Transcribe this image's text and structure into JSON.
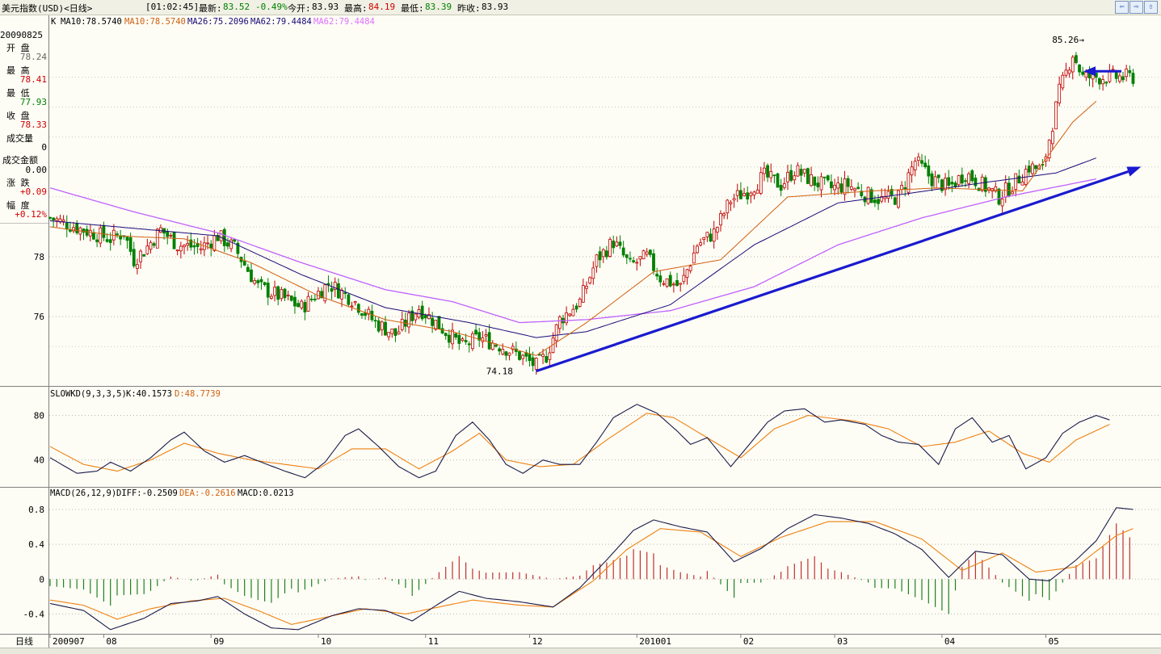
{
  "header": {
    "title": "美元指数(USD)<日线>",
    "time": "[01:02:45]",
    "last_label": "最新:",
    "last_value": "83.52",
    "change": "-0.49%",
    "open_label": "今开:",
    "open_value": "83.93",
    "high_label": "最高:",
    "high_value": "84.19",
    "low_label": "最低:",
    "low_value": "83.39",
    "prev_label": "昨收:",
    "prev_value": "83.93"
  },
  "nav_buttons": [
    "⇦",
    "⇨",
    "⇧"
  ],
  "info_panel": {
    "date": "20090825",
    "open_label": "开  盘",
    "open_value": "78.24",
    "high_label": "最  高",
    "high_value": "78.41",
    "low_label": "最  低",
    "low_value": "77.93",
    "close_label": "收  盘",
    "close_value": "78.33",
    "volume_label": "成交量",
    "volume_value": "0",
    "amount_label": "成交金额",
    "amount_value": "0.00",
    "change_label": "涨  跌",
    "change_value": "+0.09",
    "range_label": "幅  度",
    "range_value": "+0.12%"
  },
  "main_legend": {
    "k": "K",
    "ma10a": "MA10:78.5740",
    "ma10b": "MA10:78.5740",
    "ma26": "MA26:75.2096",
    "ma62a": "MA62:79.4484",
    "ma62b": "MA62:79.4484"
  },
  "kd_legend": {
    "name": "SLOWKD(9,3,3,5)",
    "k": "K:40.1573",
    "d": "D:48.7739"
  },
  "macd_legend": {
    "name": "MACD(26,12,9)",
    "diff": "DIFF:-0.2509",
    "dea": "DEA:-0.2616",
    "macd": "MACD:0.0213"
  },
  "annotations": {
    "high": "85.26→",
    "low": "74.18"
  },
  "x_axis": {
    "period": "日线",
    "labels": [
      "200907",
      "08",
      "09",
      "10",
      "11",
      "12",
      "201001",
      "02",
      "03",
      "04",
      "05"
    ]
  },
  "chart_data": [
    {
      "type": "candlestick",
      "title": "美元指数(USD)<日线>",
      "y_ticks": [
        76,
        78
      ],
      "ylim": [
        73.9,
        85.5
      ],
      "series": [
        {
          "name": "MA10",
          "color": "#d06010"
        },
        {
          "name": "MA26",
          "color": "#1a0a7a"
        },
        {
          "name": "MA62",
          "color": "#c060ff"
        }
      ],
      "x": [
        "2009-07",
        "2009-08",
        "2009-09",
        "2009-10",
        "2009-11",
        "2009-12",
        "2010-01",
        "2010-02",
        "2010-03",
        "2010-04",
        "2010-05"
      ],
      "close_path": [
        [
          0,
          79.3
        ],
        [
          10,
          78.9
        ],
        [
          18,
          78.6
        ],
        [
          22,
          78.8
        ],
        [
          25,
          77.9
        ],
        [
          28,
          78.2
        ],
        [
          33,
          78.9
        ],
        [
          38,
          78.4
        ],
        [
          45,
          78.3
        ],
        [
          50,
          78.7
        ],
        [
          55,
          78.3
        ],
        [
          62,
          77.0
        ],
        [
          70,
          76.6
        ],
        [
          75,
          76.3
        ],
        [
          83,
          77.1
        ],
        [
          90,
          76.6
        ],
        [
          97,
          75.8
        ],
        [
          103,
          75.4
        ],
        [
          110,
          76.3
        ],
        [
          117,
          75.6
        ],
        [
          123,
          75.0
        ],
        [
          128,
          75.3
        ],
        [
          135,
          75.0
        ],
        [
          140,
          74.7
        ],
        [
          145,
          74.35
        ],
        [
          148,
          74.7
        ],
        [
          152,
          75.9
        ],
        [
          158,
          76.5
        ],
        [
          163,
          77.9
        ],
        [
          168,
          78.5
        ],
        [
          173,
          77.7
        ],
        [
          178,
          78.0
        ],
        [
          182,
          77.3
        ],
        [
          188,
          77.0
        ],
        [
          193,
          78.4
        ],
        [
          198,
          78.8
        ],
        [
          203,
          79.9
        ],
        [
          208,
          80.2
        ],
        [
          213,
          80.7
        ],
        [
          218,
          80.4
        ],
        [
          222,
          80.9
        ],
        [
          228,
          80.5
        ],
        [
          233,
          80.3
        ],
        [
          238,
          80.4
        ],
        [
          243,
          80.1
        ],
        [
          248,
          79.9
        ],
        [
          253,
          80.0
        ],
        [
          258,
          81.2
        ],
        [
          263,
          80.6
        ],
        [
          268,
          80.3
        ],
        [
          273,
          80.8
        ],
        [
          278,
          80.4
        ],
        [
          283,
          80.0
        ],
        [
          287,
          80.4
        ],
        [
          292,
          81.0
        ],
        [
          296,
          80.9
        ],
        [
          301,
          83.5
        ],
        [
          305,
          84.8
        ],
        [
          308,
          84.0
        ]
      ],
      "ma10": [
        [
          0,
          79.0
        ],
        [
          20,
          78.7
        ],
        [
          40,
          78.6
        ],
        [
          60,
          77.8
        ],
        [
          80,
          76.7
        ],
        [
          100,
          75.9
        ],
        [
          120,
          75.5
        ],
        [
          145,
          74.7
        ],
        [
          160,
          75.8
        ],
        [
          180,
          77.5
        ],
        [
          200,
          77.9
        ],
        [
          220,
          80.0
        ],
        [
          245,
          80.2
        ],
        [
          265,
          80.3
        ],
        [
          290,
          80.2
        ],
        [
          305,
          82.5
        ],
        [
          312,
          83.2
        ]
      ],
      "ma26": [
        [
          0,
          79.2
        ],
        [
          30,
          78.9
        ],
        [
          50,
          78.7
        ],
        [
          75,
          77.4
        ],
        [
          100,
          76.3
        ],
        [
          125,
          75.8
        ],
        [
          145,
          75.3
        ],
        [
          160,
          75.5
        ],
        [
          185,
          76.4
        ],
        [
          210,
          78.4
        ],
        [
          235,
          79.8
        ],
        [
          255,
          80.1
        ],
        [
          280,
          80.5
        ],
        [
          300,
          80.8
        ],
        [
          312,
          81.3
        ]
      ],
      "ma62": [
        [
          0,
          80.3
        ],
        [
          25,
          79.5
        ],
        [
          50,
          78.8
        ],
        [
          75,
          77.8
        ],
        [
          100,
          76.9
        ],
        [
          120,
          76.5
        ],
        [
          140,
          75.8
        ],
        [
          160,
          75.9
        ],
        [
          185,
          76.2
        ],
        [
          210,
          77.0
        ],
        [
          235,
          78.4
        ],
        [
          260,
          79.3
        ],
        [
          285,
          80.0
        ],
        [
          312,
          80.6
        ]
      ],
      "trendline": {
        "from": [
          145,
          74.18
        ],
        "to": [
          323,
          80.9
        ]
      },
      "high_annotation": 85.26,
      "low_annotation": 74.18
    },
    {
      "type": "line",
      "title": "SLOWKD(9,3,3,5)",
      "y_ticks": [
        40,
        80
      ],
      "ylim": [
        18,
        92
      ],
      "series": [
        {
          "name": "K",
          "color": "#1a1a4a",
          "values": [
            [
              0,
              42
            ],
            [
              8,
              28
            ],
            [
              14,
              30
            ],
            [
              18,
              38
            ],
            [
              24,
              30
            ],
            [
              30,
              42
            ],
            [
              36,
              58
            ],
            [
              40,
              65
            ],
            [
              46,
              48
            ],
            [
              52,
              38
            ],
            [
              58,
              44
            ],
            [
              63,
              38
            ],
            [
              70,
              30
            ],
            [
              76,
              24
            ],
            [
              82,
              38
            ],
            [
              88,
              62
            ],
            [
              92,
              68
            ],
            [
              98,
              52
            ],
            [
              104,
              34
            ],
            [
              110,
              24
            ],
            [
              115,
              30
            ],
            [
              121,
              62
            ],
            [
              126,
              74
            ],
            [
              131,
              58
            ],
            [
              136,
              36
            ],
            [
              141,
              28
            ],
            [
              147,
              40
            ],
            [
              152,
              36
            ],
            [
              158,
              36
            ],
            [
              163,
              56
            ],
            [
              168,
              78
            ],
            [
              175,
              90
            ],
            [
              181,
              82
            ],
            [
              187,
              66
            ],
            [
              191,
              54
            ],
            [
              196,
              60
            ],
            [
              203,
              34
            ],
            [
              208,
              52
            ],
            [
              214,
              74
            ],
            [
              219,
              84
            ],
            [
              225,
              86
            ],
            [
              231,
              74
            ],
            [
              236,
              76
            ],
            [
              243,
              72
            ],
            [
              248,
              62
            ],
            [
              253,
              56
            ],
            [
              259,
              54
            ],
            [
              265,
              36
            ],
            [
              270,
              68
            ],
            [
              275,
              78
            ],
            [
              281,
              56
            ],
            [
              286,
              62
            ],
            [
              291,
              32
            ],
            [
              297,
              42
            ],
            [
              302,
              64
            ],
            [
              307,
              74
            ],
            [
              312,
              80
            ],
            [
              316,
              76
            ]
          ]
        },
        {
          "name": "D",
          "color": "#f08010",
          "values": [
            [
              0,
              52
            ],
            [
              10,
              36
            ],
            [
              20,
              30
            ],
            [
              30,
              40
            ],
            [
              40,
              55
            ],
            [
              50,
              46
            ],
            [
              60,
              40
            ],
            [
              70,
              36
            ],
            [
              80,
              32
            ],
            [
              90,
              50
            ],
            [
              100,
              50
            ],
            [
              110,
              32
            ],
            [
              120,
              48
            ],
            [
              128,
              64
            ],
            [
              136,
              40
            ],
            [
              146,
              34
            ],
            [
              156,
              36
            ],
            [
              166,
              58
            ],
            [
              178,
              82
            ],
            [
              186,
              78
            ],
            [
              196,
              60
            ],
            [
              206,
              42
            ],
            [
              216,
              68
            ],
            [
              226,
              80
            ],
            [
              240,
              75
            ],
            [
              250,
              68
            ],
            [
              260,
              52
            ],
            [
              270,
              56
            ],
            [
              280,
              66
            ],
            [
              290,
              46
            ],
            [
              298,
              38
            ],
            [
              306,
              58
            ],
            [
              316,
              72
            ]
          ]
        }
      ]
    },
    {
      "type": "line",
      "title": "MACD(26,12,9)",
      "y_ticks": [
        -0.4,
        0,
        0.4,
        0.8
      ],
      "ylim": [
        -0.6,
        0.92
      ],
      "series": [
        {
          "name": "DIFF",
          "color": "#1a1a4a",
          "values": [
            [
              0,
              -0.28
            ],
            [
              10,
              -0.36
            ],
            [
              18,
              -0.58
            ],
            [
              28,
              -0.45
            ],
            [
              36,
              -0.28
            ],
            [
              44,
              -0.25
            ],
            [
              50,
              -0.2
            ],
            [
              58,
              -0.4
            ],
            [
              66,
              -0.56
            ],
            [
              74,
              -0.58
            ],
            [
              84,
              -0.42
            ],
            [
              92,
              -0.34
            ],
            [
              100,
              -0.36
            ],
            [
              108,
              -0.48
            ],
            [
              116,
              -0.28
            ],
            [
              122,
              -0.14
            ],
            [
              130,
              -0.22
            ],
            [
              140,
              -0.26
            ],
            [
              150,
              -0.32
            ],
            [
              158,
              -0.1
            ],
            [
              166,
              0.22
            ],
            [
              174,
              0.56
            ],
            [
              180,
              0.68
            ],
            [
              188,
              0.6
            ],
            [
              196,
              0.54
            ],
            [
              204,
              0.2
            ],
            [
              212,
              0.35
            ],
            [
              220,
              0.58
            ],
            [
              228,
              0.74
            ],
            [
              236,
              0.7
            ],
            [
              244,
              0.64
            ],
            [
              252,
              0.52
            ],
            [
              260,
              0.34
            ],
            [
              268,
              0.02
            ],
            [
              276,
              0.32
            ],
            [
              284,
              0.28
            ],
            [
              292,
              0.0
            ],
            [
              298,
              -0.02
            ],
            [
              306,
              0.22
            ],
            [
              312,
              0.44
            ],
            [
              318,
              0.82
            ],
            [
              323,
              0.8
            ]
          ]
        },
        {
          "name": "DEA",
          "color": "#f08010",
          "values": [
            [
              0,
              -0.24
            ],
            [
              10,
              -0.3
            ],
            [
              20,
              -0.46
            ],
            [
              30,
              -0.34
            ],
            [
              42,
              -0.25
            ],
            [
              52,
              -0.22
            ],
            [
              62,
              -0.36
            ],
            [
              72,
              -0.52
            ],
            [
              82,
              -0.44
            ],
            [
              94,
              -0.34
            ],
            [
              106,
              -0.4
            ],
            [
              116,
              -0.32
            ],
            [
              126,
              -0.24
            ],
            [
              140,
              -0.3
            ],
            [
              150,
              -0.32
            ],
            [
              162,
              -0.02
            ],
            [
              172,
              0.34
            ],
            [
              182,
              0.58
            ],
            [
              194,
              0.54
            ],
            [
              206,
              0.26
            ],
            [
              218,
              0.48
            ],
            [
              232,
              0.66
            ],
            [
              246,
              0.66
            ],
            [
              260,
              0.46
            ],
            [
              272,
              0.1
            ],
            [
              284,
              0.3
            ],
            [
              294,
              0.08
            ],
            [
              306,
              0.14
            ],
            [
              318,
              0.5
            ],
            [
              323,
              0.58
            ]
          ]
        },
        {
          "name": "MACD",
          "color": "#c03030"
        }
      ]
    }
  ]
}
